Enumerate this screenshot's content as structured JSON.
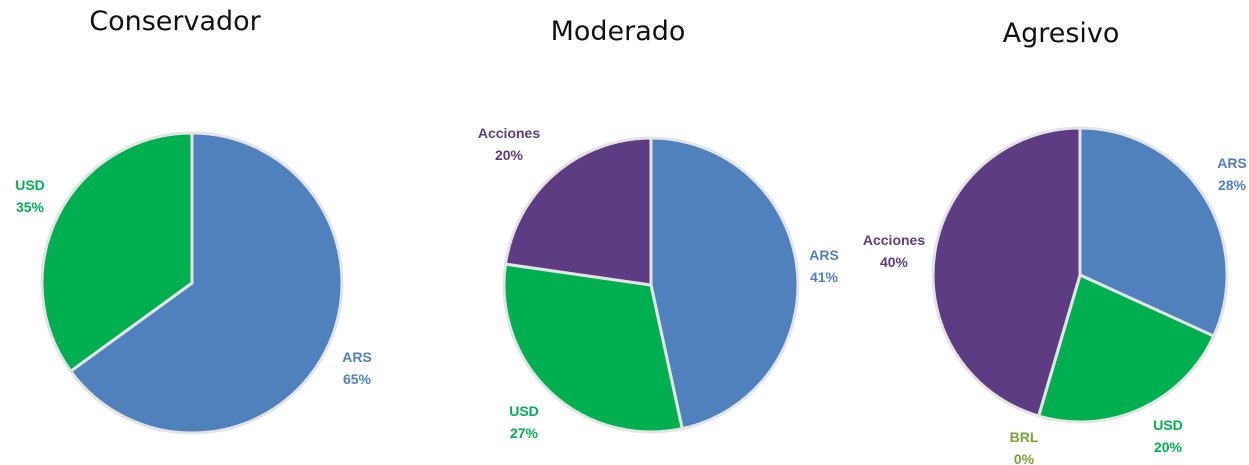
{
  "chart_data": [
    {
      "type": "pie",
      "title": "Conservador",
      "categories": [
        "ARS",
        "USD"
      ],
      "values": [
        65,
        35
      ],
      "value_labels": [
        "65%",
        "35%"
      ],
      "colors": [
        "#4f81bd",
        "#00b050"
      ]
    },
    {
      "type": "pie",
      "title": "Moderado",
      "categories": [
        "ARS",
        "USD",
        "Acciones"
      ],
      "values": [
        41,
        27,
        20
      ],
      "value_labels": [
        "41%",
        "27%",
        "20%"
      ],
      "colors": [
        "#4f81bd",
        "#00b050",
        "#5e3c84"
      ]
    },
    {
      "type": "pie",
      "title": "Agresivo",
      "categories": [
        "ARS",
        "USD",
        "BRL",
        "Acciones"
      ],
      "values": [
        28,
        20,
        0,
        40
      ],
      "value_labels": [
        "28%",
        "20%",
        "0%",
        "40%"
      ],
      "colors": [
        "#4f81bd",
        "#00b050",
        "#77a33a",
        "#5e3c84"
      ]
    }
  ]
}
